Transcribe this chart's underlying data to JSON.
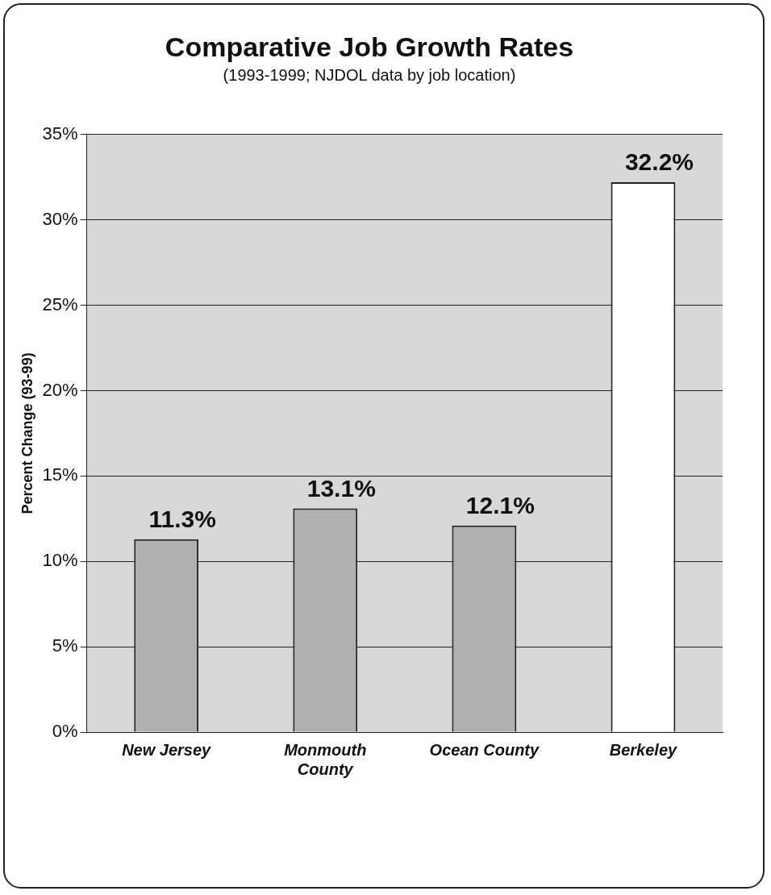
{
  "chart_data": {
    "type": "bar",
    "title": "Comparative Job Growth Rates",
    "subtitle": "(1993-1999; NJDOL data by job location)",
    "ylabel": "Percent Change (93-99)",
    "categories": [
      "New Jersey",
      "Monmouth County",
      "Ocean County",
      "Berkeley"
    ],
    "values": [
      11.3,
      13.1,
      12.1,
      32.2
    ],
    "colors": [
      "#b0b0b0",
      "#b0b0b0",
      "#b0b0b0",
      "#ffffff"
    ],
    "value_labels": [
      "11.3%",
      "13.1%",
      "12.1%",
      "32.2%"
    ],
    "ylim": [
      0,
      35
    ],
    "yticks": [
      {
        "value": 0,
        "label": "0%"
      },
      {
        "value": 5,
        "label": "5%"
      },
      {
        "value": 10,
        "label": "10%"
      },
      {
        "value": 15,
        "label": "15%"
      },
      {
        "value": 20,
        "label": "20%"
      },
      {
        "value": 25,
        "label": "25%"
      },
      {
        "value": 30,
        "label": "30%"
      },
      {
        "value": 35,
        "label": "35%"
      }
    ],
    "grid": "y",
    "legend": false
  }
}
